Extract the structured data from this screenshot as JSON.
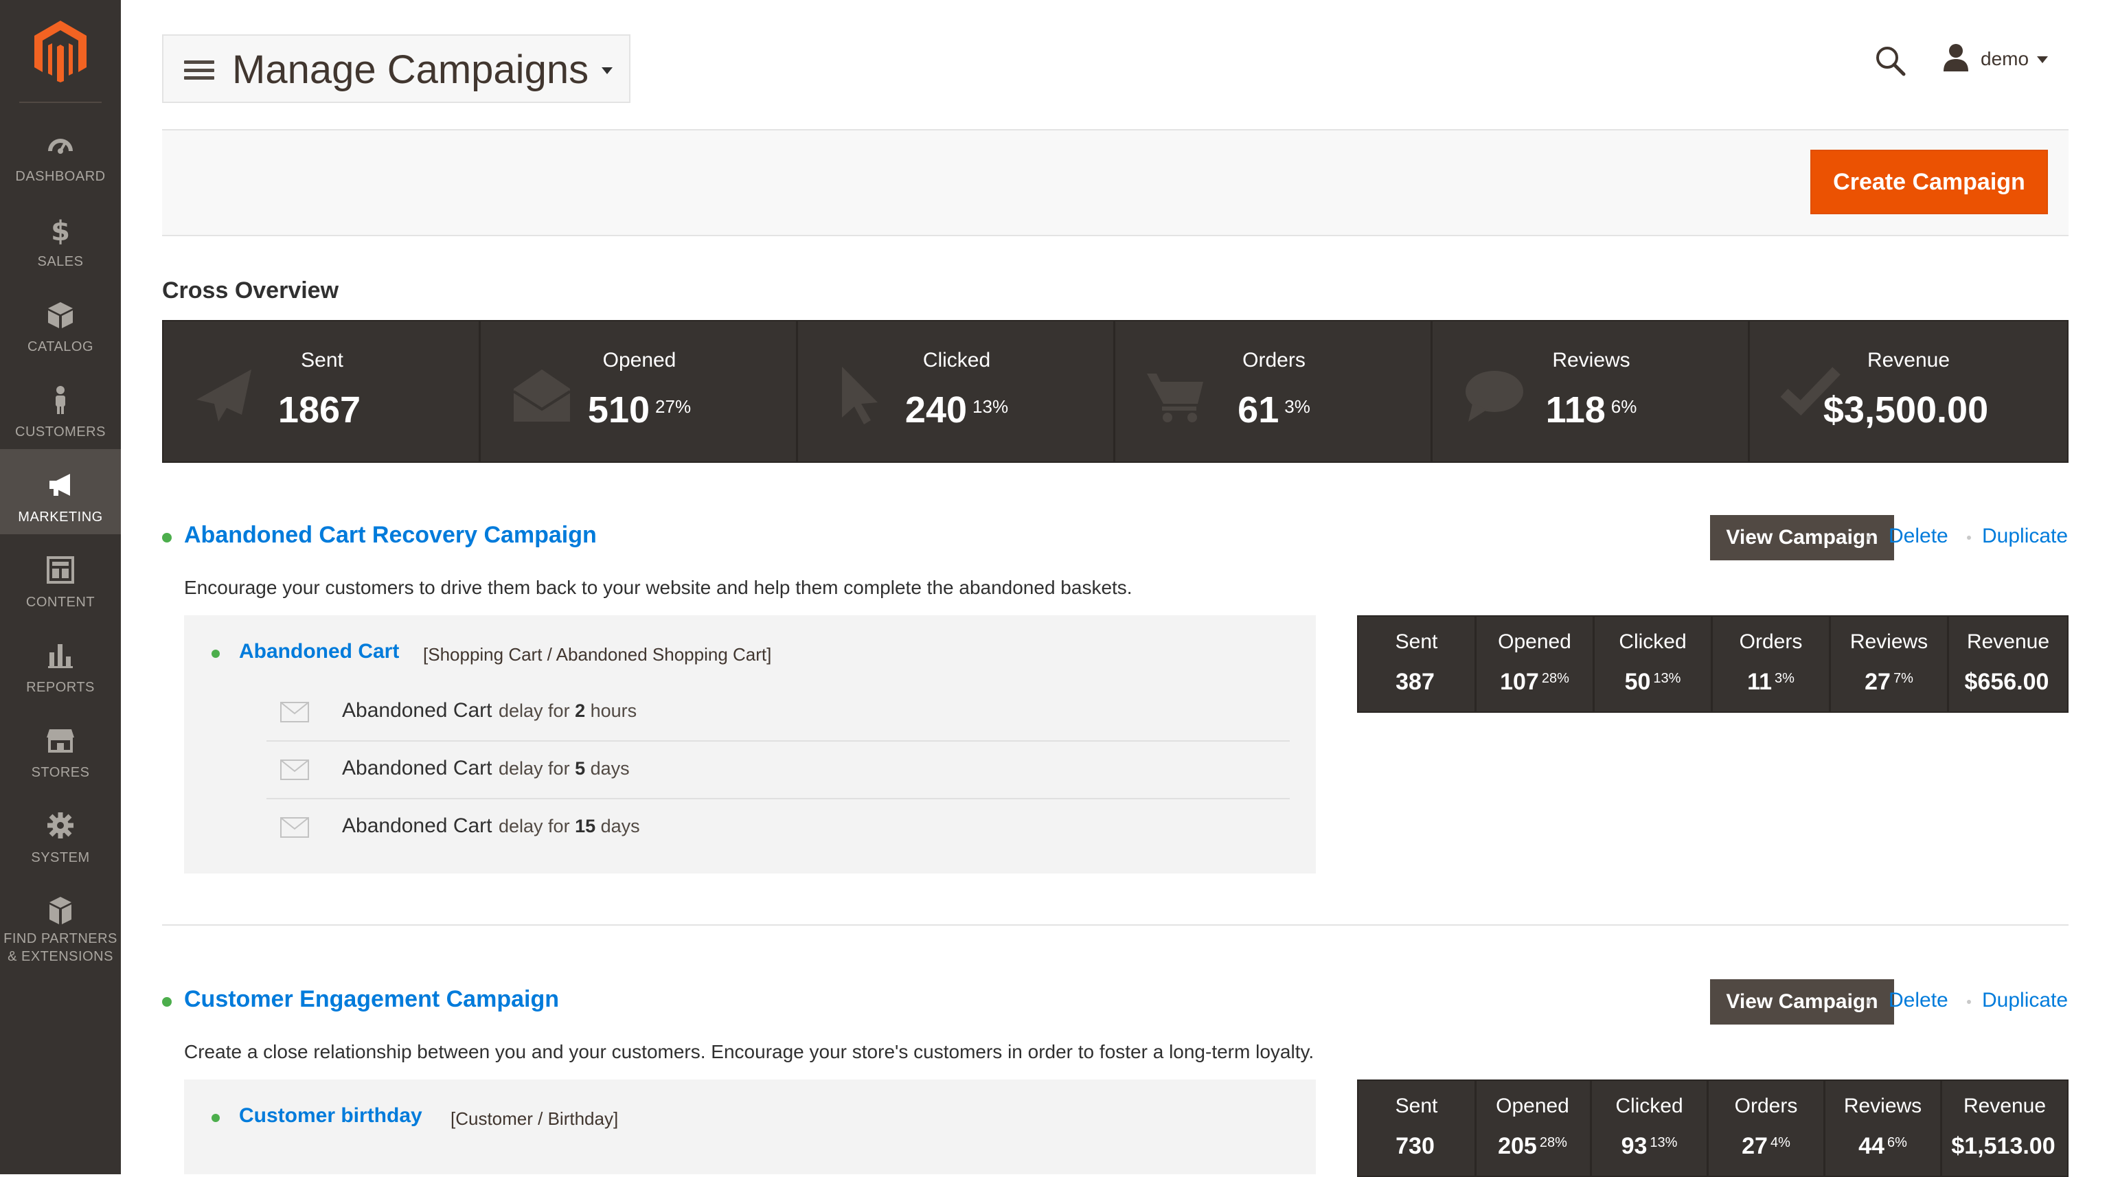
{
  "sidebar": {
    "items": [
      {
        "label": "DASHBOARD",
        "icon": "dashboard-icon"
      },
      {
        "label": "SALES",
        "icon": "dollar-icon"
      },
      {
        "label": "CATALOG",
        "icon": "box-icon"
      },
      {
        "label": "CUSTOMERS",
        "icon": "person-icon"
      },
      {
        "label": "MARKETING",
        "icon": "megaphone-icon",
        "active": true
      },
      {
        "label": "CONTENT",
        "icon": "layout-icon"
      },
      {
        "label": "REPORTS",
        "icon": "bar-chart-icon"
      },
      {
        "label": "STORES",
        "icon": "storefront-icon"
      },
      {
        "label": "SYSTEM",
        "icon": "gear-icon"
      },
      {
        "label_line1": "FIND PARTNERS",
        "label_line2": "& EXTENSIONS",
        "icon": "cubes-icon"
      }
    ]
  },
  "header": {
    "title": "Manage Campaigns",
    "user": "demo"
  },
  "actions": {
    "create_label": "Create Campaign"
  },
  "overview": {
    "title": "Cross Overview",
    "metrics": [
      {
        "label": "Sent",
        "value": "1867",
        "pct": "",
        "icon": "paper-plane-icon"
      },
      {
        "label": "Opened",
        "value": "510",
        "pct": "27%",
        "icon": "open-envelope-icon"
      },
      {
        "label": "Clicked",
        "value": "240",
        "pct": "13%",
        "icon": "cursor-icon"
      },
      {
        "label": "Orders",
        "value": "61",
        "pct": "3%",
        "icon": "cart-icon"
      },
      {
        "label": "Reviews",
        "value": "118",
        "pct": "6%",
        "icon": "speech-bubble-icon"
      },
      {
        "label": "Revenue",
        "value": "$3,500.00",
        "pct": "",
        "icon": "checkmark-icon"
      }
    ]
  },
  "campaigns": [
    {
      "title": "Abandoned Cart Recovery Campaign",
      "description": "Encourage your customers to drive them back to your website and help them complete the abandoned baskets.",
      "view_label": "View Campaign",
      "delete_label": "Delete",
      "duplicate_label": "Duplicate",
      "rule": {
        "name": "Abandoned Cart",
        "path": "[Shopping Cart / Abandoned Shopping Cart]"
      },
      "chain": [
        {
          "name": "Abandoned Cart",
          "delay_prefix": "delay for",
          "delay_value": "2",
          "delay_unit": "hours"
        },
        {
          "name": "Abandoned Cart",
          "delay_prefix": "delay for",
          "delay_value": "5",
          "delay_unit": "days"
        },
        {
          "name": "Abandoned Cart",
          "delay_prefix": "delay for",
          "delay_value": "15",
          "delay_unit": "days"
        }
      ],
      "stats": [
        {
          "label": "Sent",
          "value": "387",
          "pct": ""
        },
        {
          "label": "Opened",
          "value": "107",
          "pct": "28%"
        },
        {
          "label": "Clicked",
          "value": "50",
          "pct": "13%"
        },
        {
          "label": "Orders",
          "value": "11",
          "pct": "3%"
        },
        {
          "label": "Reviews",
          "value": "27",
          "pct": "7%"
        },
        {
          "label": "Revenue",
          "value": "$656.00",
          "pct": ""
        }
      ]
    },
    {
      "title": "Customer Engagement Campaign",
      "description": "Create a close relationship between you and your customers. Encourage your store's customers in order to foster a long-term loyalty.",
      "view_label": "View Campaign",
      "delete_label": "Delete",
      "duplicate_label": "Duplicate",
      "rule": {
        "name": "Customer birthday",
        "path": "[Customer / Birthday]"
      },
      "stats": [
        {
          "label": "Sent",
          "value": "730",
          "pct": ""
        },
        {
          "label": "Opened",
          "value": "205",
          "pct": "28%"
        },
        {
          "label": "Clicked",
          "value": "93",
          "pct": "13%"
        },
        {
          "label": "Orders",
          "value": "27",
          "pct": "4%"
        },
        {
          "label": "Reviews",
          "value": "44",
          "pct": "6%"
        },
        {
          "label": "Revenue",
          "value": "$1,513.00",
          "pct": ""
        }
      ]
    }
  ],
  "colors": {
    "sidebar_bg": "#373330",
    "accent_orange": "#eb5202",
    "link_blue": "#007bdb",
    "status_green": "#4cae4c",
    "stat_panel_bg": "#373330"
  }
}
